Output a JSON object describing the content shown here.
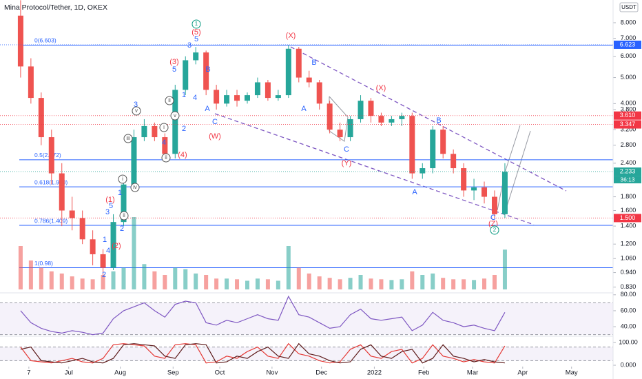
{
  "header": {
    "title": "Mina Protocol/Tether, 1D, OKEX",
    "currency": "USDT"
  },
  "chart_data": {
    "type": "candlestick",
    "log_scale": true,
    "up_color": "#26a69a",
    "down_color": "#ef5350",
    "open": [
      8.5,
      5.5,
      4.2,
      3.0,
      2.2,
      1.6,
      1.5,
      1.25,
      1.1,
      0.98,
      1.45,
      2.0,
      3.0,
      3.3,
      3.0,
      2.6,
      4.5,
      5.8,
      6.2,
      4.5,
      4.0,
      4.3,
      4.1,
      4.3,
      4.8,
      4.2,
      4.3,
      6.4,
      5.0,
      4.8,
      4.0,
      3.2,
      3.0,
      3.5,
      4.1,
      3.6,
      3.4,
      3.5,
      3.6,
      2.2,
      2.3,
      3.2,
      2.6,
      2.3,
      1.9,
      1.95,
      1.8,
      1.55
    ],
    "high": [
      9.7,
      5.9,
      4.4,
      3.2,
      2.4,
      1.8,
      1.6,
      1.35,
      1.15,
      1.55,
      2.1,
      3.2,
      3.5,
      3.4,
      3.1,
      4.7,
      6.0,
      6.5,
      6.3,
      4.7,
      4.5,
      4.5,
      4.4,
      5.0,
      4.9,
      4.5,
      6.6,
      6.5,
      5.3,
      4.9,
      4.1,
      3.4,
      3.6,
      4.3,
      4.2,
      3.7,
      3.6,
      3.7,
      3.7,
      2.4,
      3.3,
      3.3,
      2.7,
      2.4,
      2.1,
      2.05,
      1.9,
      2.4
    ],
    "low": [
      5.0,
      4.0,
      2.8,
      2.0,
      1.4,
      1.35,
      1.2,
      1.0,
      0.92,
      0.96,
      1.4,
      1.9,
      2.9,
      2.9,
      2.5,
      2.5,
      4.3,
      5.6,
      4.3,
      3.8,
      3.9,
      3.9,
      4.0,
      4.2,
      4.1,
      4.1,
      4.2,
      4.8,
      4.6,
      3.8,
      3.1,
      2.9,
      2.9,
      3.4,
      3.4,
      3.3,
      3.3,
      3.3,
      2.1,
      2.1,
      2.2,
      2.5,
      2.2,
      1.8,
      1.75,
      1.7,
      1.5,
      1.5
    ],
    "close": [
      5.5,
      4.2,
      3.0,
      2.2,
      1.6,
      1.5,
      1.25,
      1.1,
      0.98,
      1.45,
      2.0,
      3.0,
      3.3,
      3.0,
      2.6,
      4.5,
      5.8,
      6.2,
      4.5,
      4.0,
      4.3,
      4.1,
      4.3,
      4.8,
      4.2,
      4.3,
      6.4,
      5.0,
      4.8,
      4.0,
      3.2,
      3.0,
      3.5,
      4.1,
      3.6,
      3.4,
      3.5,
      3.6,
      2.2,
      2.3,
      3.2,
      2.6,
      2.3,
      1.9,
      1.95,
      1.8,
      1.55,
      2.23
    ],
    "volume": [
      60,
      40,
      30,
      25,
      22,
      18,
      15,
      14,
      20,
      25,
      30,
      100,
      35,
      25,
      20,
      30,
      28,
      22,
      20,
      15,
      15,
      14,
      12,
      15,
      14,
      12,
      60,
      30,
      22,
      18,
      16,
      14,
      16,
      20,
      15,
      14,
      13,
      14,
      25,
      20,
      22,
      16,
      14,
      14,
      13,
      15,
      20,
      55
    ],
    "xlim": [
      -2,
      57.5
    ],
    "xticks": [
      {
        "value": 0.8,
        "label": "7"
      },
      {
        "value": 4.67,
        "label": "Jul"
      },
      {
        "value": 9.67,
        "label": "Aug"
      },
      {
        "value": 14.8,
        "label": "Sep"
      },
      {
        "value": 19.33,
        "label": "Oct"
      },
      {
        "value": 24.4,
        "label": "Nov"
      },
      {
        "value": 29.2,
        "label": "Dec"
      },
      {
        "value": 34.33,
        "label": "2022"
      },
      {
        "value": 39.13,
        "label": "Feb"
      },
      {
        "value": 43.87,
        "label": "Mar"
      },
      {
        "value": 48.73,
        "label": "Apr"
      },
      {
        "value": 53.47,
        "label": "May"
      }
    ],
    "ylim": [
      0.79,
      9.72
    ],
    "yticks": [
      {
        "value": 8,
        "label": "8.000"
      },
      {
        "value": 7,
        "label": "7.000"
      },
      {
        "value": 6,
        "label": "6.000"
      },
      {
        "value": 5,
        "label": "5.000"
      },
      {
        "value": 4,
        "label": "4.000"
      },
      {
        "value": 3.8,
        "label": "3.800"
      },
      {
        "value": 3.2,
        "label": "3.200"
      },
      {
        "value": 2.8,
        "label": "2.800"
      },
      {
        "value": 2.4,
        "label": "2.400"
      },
      {
        "value": 1.8,
        "label": "1.800"
      },
      {
        "value": 1.6,
        "label": "1.600"
      },
      {
        "value": 1.4,
        "label": "1.400"
      },
      {
        "value": 1.2,
        "label": "1.200"
      },
      {
        "value": 1.06,
        "label": "1.060"
      },
      {
        "value": 0.94,
        "label": "0.940"
      },
      {
        "value": 0.83,
        "label": "0.830"
      }
    ],
    "fib_levels": [
      {
        "value": 6.603,
        "label": "0(6.603)"
      },
      {
        "value": 2.472,
        "label": "0.5(2.472)"
      },
      {
        "value": 1.96,
        "label": "0.618(1.960)"
      },
      {
        "value": 1.409,
        "label": "0.786(1.409)"
      },
      {
        "value": 0.98,
        "label": "1(0.98)"
      }
    ],
    "fib_color": "#2962ff",
    "price_tags": [
      {
        "value": 6.623,
        "label": "6.623",
        "color": "#2962ff"
      },
      {
        "value": 3.61,
        "label": "3.610",
        "color": "#f23645"
      },
      {
        "value": 3.347,
        "label": "3.347",
        "color": "#f23645"
      },
      {
        "value": 2.233,
        "label": "2.233",
        "color": "#26a69a"
      },
      {
        "value": 1.5,
        "label": "1.500",
        "color": "#f23645"
      }
    ],
    "countdown": "36:13",
    "annotations": [
      "1",
      "(5)",
      "5",
      "3",
      "(3)",
      "5",
      "B",
      "4",
      "1",
      "A",
      "C",
      "(W)",
      "(X)",
      "B",
      "A",
      "(X)",
      "C",
      "(Y)",
      "B",
      "A",
      "C",
      "(Z)",
      "2",
      "(4)",
      "2",
      "3",
      "v",
      "iii",
      "i",
      "ii",
      "v",
      "4",
      "ii",
      "(1)",
      "5",
      "3",
      "1",
      "i",
      "iv",
      "2",
      "ii",
      "(2)",
      "1",
      "4",
      "2"
    ],
    "rsi": {
      "values": [
        60,
        45,
        38,
        34,
        32,
        35,
        33,
        30,
        32,
        50,
        60,
        65,
        70,
        60,
        52,
        68,
        72,
        70,
        45,
        42,
        48,
        45,
        50,
        55,
        50,
        48,
        78,
        55,
        52,
        45,
        38,
        40,
        55,
        62,
        50,
        48,
        50,
        52,
        35,
        42,
        58,
        48,
        45,
        40,
        42,
        38,
        35,
        58
      ],
      "color": "#7e57c2",
      "ylim": [
        28,
        82.4
      ],
      "bands": [
        70,
        30
      ],
      "yticks": [
        {
          "value": 80,
          "label": "80.00"
        },
        {
          "value": 60,
          "label": "60.00"
        },
        {
          "value": 40,
          "label": "40.00"
        }
      ]
    },
    "stoch": {
      "k": [
        80,
        20,
        15,
        10,
        20,
        30,
        15,
        10,
        30,
        90,
        95,
        90,
        85,
        40,
        30,
        90,
        95,
        90,
        10,
        15,
        40,
        30,
        60,
        80,
        40,
        30,
        95,
        50,
        40,
        20,
        10,
        15,
        70,
        90,
        40,
        30,
        60,
        70,
        10,
        30,
        90,
        40,
        30,
        15,
        25,
        15,
        10,
        85
      ],
      "d": [
        70,
        80,
        20,
        15,
        10,
        20,
        30,
        15,
        10,
        30,
        90,
        95,
        90,
        85,
        40,
        30,
        90,
        95,
        90,
        10,
        15,
        40,
        30,
        60,
        80,
        40,
        30,
        95,
        50,
        40,
        20,
        10,
        15,
        70,
        90,
        40,
        30,
        60,
        70,
        10,
        30,
        90,
        40,
        30,
        15,
        25,
        15,
        10
      ],
      "k_color": "#e53935",
      "d_color": "#5d1a1a",
      "ylim": [
        -6,
        121.2
      ],
      "bands": [
        80,
        20
      ],
      "yticks": [
        {
          "value": 100,
          "label": "100.00"
        },
        {
          "value": 0,
          "label": "0.000"
        }
      ]
    }
  }
}
